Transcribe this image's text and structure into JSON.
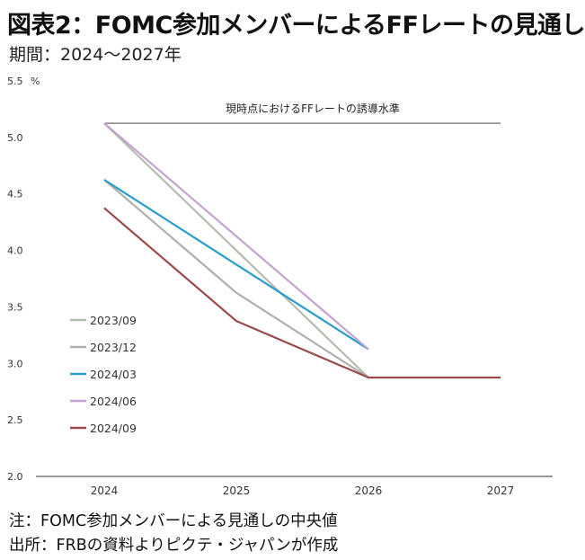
{
  "title": "図表2：FOMC参加メンバーによるFFレートの見通し",
  "subtitle": "期間：2024～2027年",
  "notes": {
    "note": "注：FOMC参加メンバーによる見通しの中央値",
    "source": "出所：FRBの資料よりピクテ・ジャパンが作成"
  },
  "colors": {
    "2023/09": "#b4bdb0",
    "2023/12": "#b0b0b0",
    "2024/03": "#2b9ccc",
    "2024/06": "#c3a3cf",
    "2024/09": "#9b4a4a",
    "reference": "#6a6a6a",
    "axis": "#333333"
  },
  "chart_data": {
    "type": "line",
    "x": [
      "2024",
      "2025",
      "2026",
      "2027"
    ],
    "ylim": [
      2.0,
      5.5
    ],
    "yticks": [
      "2.0",
      "2.5",
      "3.0",
      "3.5",
      "4.0",
      "4.5",
      "5.0",
      "5.5"
    ],
    "yunit": "%",
    "grid": false,
    "legend_position": "left",
    "series": [
      {
        "name": "2023/09",
        "values": [
          5.125,
          null,
          2.875,
          null
        ]
      },
      {
        "name": "2023/12",
        "values": [
          4.625,
          3.625,
          2.875,
          null
        ]
      },
      {
        "name": "2024/03",
        "values": [
          4.625,
          null,
          3.125,
          null
        ]
      },
      {
        "name": "2024/06",
        "values": [
          5.125,
          null,
          3.125,
          null
        ]
      },
      {
        "name": "2024/09",
        "values": [
          4.375,
          3.375,
          2.875,
          2.875
        ]
      }
    ],
    "reference_line": {
      "label": "現時点におけるFFレートの誘導水準",
      "value": 5.125
    }
  }
}
